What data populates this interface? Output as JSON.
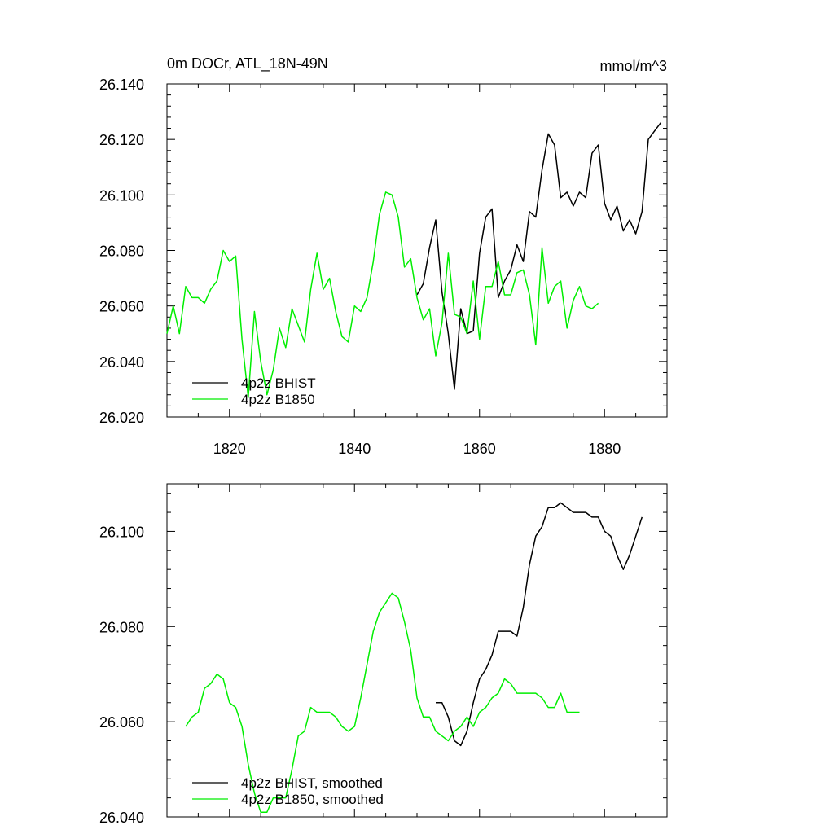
{
  "chart_data": [
    {
      "type": "line",
      "title": "0m DOCr, ATL_18N-49N",
      "units_label": "mmol/m^3",
      "xlabel": "",
      "ylabel": "",
      "xlim": [
        1810,
        1890
      ],
      "ylim": [
        26.02,
        26.14
      ],
      "xticks": [
        1820,
        1840,
        1860,
        1880
      ],
      "xtick_labels": [
        "1820",
        "1840",
        "1860",
        "1880"
      ],
      "yticks": [
        26.02,
        26.04,
        26.06,
        26.08,
        26.1,
        26.12,
        26.14
      ],
      "ytick_labels": [
        "26.020",
        "26.040",
        "26.060",
        "26.080",
        "26.100",
        "26.120",
        "26.140"
      ],
      "grid": false,
      "legend": "bottom-left",
      "series": [
        {
          "name": "4p2z BHIST",
          "color": "#000000",
          "x": [
            1850,
            1851,
            1852,
            1853,
            1854,
            1855,
            1856,
            1857,
            1858,
            1859,
            1860,
            1861,
            1862,
            1863,
            1864,
            1865,
            1866,
            1867,
            1868,
            1869,
            1870,
            1871,
            1872,
            1873,
            1874,
            1875,
            1876,
            1877,
            1878,
            1879,
            1880,
            1881,
            1882,
            1883,
            1884,
            1885,
            1886,
            1887,
            1888,
            1889
          ],
          "y": [
            26.064,
            26.068,
            26.081,
            26.091,
            26.065,
            26.05,
            26.03,
            26.059,
            26.05,
            26.051,
            26.079,
            26.092,
            26.095,
            26.063,
            26.069,
            26.073,
            26.082,
            26.076,
            26.094,
            26.092,
            26.109,
            26.122,
            26.118,
            26.099,
            26.101,
            26.096,
            26.101,
            26.099,
            26.115,
            26.118,
            26.097,
            26.091,
            26.096,
            26.087,
            26.091,
            26.086,
            26.094,
            26.12,
            26.123,
            26.126
          ]
        },
        {
          "name": "4p2z B1850",
          "color": "#00ee00",
          "x": [
            1810,
            1811,
            1812,
            1813,
            1814,
            1815,
            1816,
            1817,
            1818,
            1819,
            1820,
            1821,
            1822,
            1823,
            1824,
            1825,
            1826,
            1827,
            1828,
            1829,
            1830,
            1831,
            1832,
            1833,
            1834,
            1835,
            1836,
            1837,
            1838,
            1839,
            1840,
            1841,
            1842,
            1843,
            1844,
            1845,
            1846,
            1847,
            1848,
            1849,
            1850,
            1851,
            1852,
            1853,
            1854,
            1855,
            1856,
            1857,
            1858,
            1859,
            1860,
            1861,
            1862,
            1863,
            1864,
            1865,
            1866,
            1867,
            1868,
            1869,
            1870,
            1871,
            1872,
            1873,
            1874,
            1875,
            1876,
            1877,
            1878,
            1879
          ],
          "y": [
            26.05,
            26.06,
            26.05,
            26.067,
            26.063,
            26.063,
            26.061,
            26.066,
            26.069,
            26.08,
            26.076,
            26.078,
            26.048,
            26.027,
            26.058,
            26.04,
            26.028,
            26.037,
            26.052,
            26.045,
            26.059,
            26.053,
            26.047,
            26.066,
            26.079,
            26.066,
            26.07,
            26.058,
            26.049,
            26.047,
            26.06,
            26.058,
            26.063,
            26.076,
            26.093,
            26.101,
            26.1,
            26.092,
            26.074,
            26.077,
            26.063,
            26.055,
            26.059,
            26.042,
            26.054,
            26.079,
            26.057,
            26.056,
            26.05,
            26.069,
            26.048,
            26.067,
            26.067,
            26.076,
            26.064,
            26.064,
            26.072,
            26.073,
            26.064,
            26.046,
            26.081,
            26.061,
            26.067,
            26.069,
            26.052,
            26.062,
            26.067,
            26.06,
            26.059,
            26.061
          ]
        }
      ]
    },
    {
      "type": "line",
      "title": "",
      "xlabel": "",
      "ylabel": "",
      "xlim": [
        1810,
        1890
      ],
      "ylim": [
        26.04,
        26.11
      ],
      "xticks": [
        1820,
        1840,
        1860,
        1880
      ],
      "yticks": [
        26.04,
        26.06,
        26.08,
        26.1
      ],
      "ytick_labels": [
        "26.040",
        "26.060",
        "26.080",
        "26.100"
      ],
      "grid": false,
      "legend": "bottom-left",
      "series": [
        {
          "name": "4p2z BHIST, smoothed",
          "color": "#000000",
          "x": [
            1853,
            1854,
            1855,
            1856,
            1857,
            1858,
            1859,
            1860,
            1861,
            1862,
            1863,
            1864,
            1865,
            1866,
            1867,
            1868,
            1869,
            1870,
            1871,
            1872,
            1873,
            1874,
            1875,
            1876,
            1877,
            1878,
            1879,
            1880,
            1881,
            1882,
            1883,
            1884,
            1885,
            1886
          ],
          "y": [
            26.064,
            26.064,
            26.061,
            26.056,
            26.055,
            26.058,
            26.064,
            26.069,
            26.071,
            26.074,
            26.079,
            26.079,
            26.079,
            26.078,
            26.084,
            26.093,
            26.099,
            26.101,
            26.105,
            26.105,
            26.106,
            26.105,
            26.104,
            26.104,
            26.104,
            26.103,
            26.103,
            26.1,
            26.099,
            26.095,
            26.092,
            26.095,
            26.099,
            26.103
          ]
        },
        {
          "name": "4p2z B1850, smoothed",
          "color": "#00ee00",
          "x": [
            1813,
            1814,
            1815,
            1816,
            1817,
            1818,
            1819,
            1820,
            1821,
            1822,
            1823,
            1824,
            1825,
            1826,
            1827,
            1828,
            1829,
            1830,
            1831,
            1832,
            1833,
            1834,
            1835,
            1836,
            1837,
            1838,
            1839,
            1840,
            1841,
            1842,
            1843,
            1844,
            1845,
            1846,
            1847,
            1848,
            1849,
            1850,
            1851,
            1852,
            1853,
            1854,
            1855,
            1856,
            1857,
            1858,
            1859,
            1860,
            1861,
            1862,
            1863,
            1864,
            1865,
            1866,
            1867,
            1868,
            1869,
            1870,
            1871,
            1872,
            1873,
            1874,
            1875,
            1876
          ],
          "y": [
            26.059,
            26.061,
            26.062,
            26.067,
            26.068,
            26.07,
            26.069,
            26.064,
            26.063,
            26.059,
            26.051,
            26.045,
            26.041,
            26.041,
            26.044,
            26.044,
            26.044,
            26.05,
            26.057,
            26.058,
            26.063,
            26.062,
            26.062,
            26.062,
            26.061,
            26.059,
            26.058,
            26.059,
            26.065,
            26.072,
            26.079,
            26.083,
            26.085,
            26.087,
            26.086,
            26.081,
            26.075,
            26.065,
            26.061,
            26.061,
            26.058,
            26.057,
            26.056,
            26.058,
            26.059,
            26.061,
            26.059,
            26.062,
            26.063,
            26.065,
            26.066,
            26.069,
            26.068,
            26.066,
            26.066,
            26.066,
            26.066,
            26.065,
            26.063,
            26.063,
            26.066,
            26.062,
            26.062,
            26.062
          ]
        }
      ]
    }
  ]
}
